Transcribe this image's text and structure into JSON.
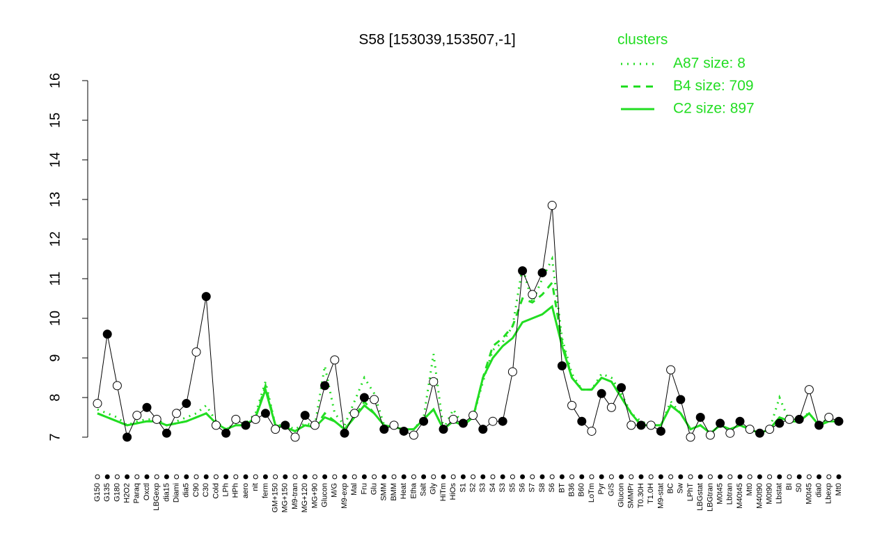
{
  "chart_data": {
    "type": "line",
    "title": "S58 [153039,153507,-1]",
    "legend_title": "clusters",
    "categories": [
      "G150",
      "G135",
      "G180",
      "H2O2",
      "Paraq",
      "Oxctl",
      "LBGexp",
      "dia15",
      "Diami",
      "dia5",
      "C90",
      "C30",
      "Cold",
      "LPh",
      "HPh",
      "aero",
      "nit",
      "ferm",
      "GM+150",
      "MG+150",
      "M9-tran",
      "MG+120",
      "MG+90",
      "Glucon",
      "M/G",
      "M9-exp",
      "Mal",
      "Fru",
      "Glu",
      "SMM",
      "BMM",
      "Heat",
      "Etha",
      "Salt",
      "Gly",
      "HiTm",
      "HiOs",
      "S1",
      "S2",
      "S3",
      "S4",
      "S3",
      "S5",
      "S6",
      "S7",
      "S8",
      "S6",
      "BT",
      "B36",
      "B60",
      "LoTm",
      "Pyr",
      "G/S",
      "Glucon",
      "SMMPr",
      "T0.30H",
      "T1.0H",
      "M9-stat",
      "BC",
      "Sw",
      "LPhT",
      "LBGstat",
      "LBGtran",
      "M0t45",
      "Lbtran",
      "M40t45",
      "Mt0",
      "M40t90",
      "M0t90",
      "Lbstat",
      "BI",
      "S0",
      "M0t45",
      "dia0",
      "Lbexp",
      "Mt0"
    ],
    "values": [
      7.85,
      9.6,
      8.3,
      7.0,
      7.55,
      7.75,
      7.45,
      7.1,
      7.6,
      7.85,
      9.15,
      10.55,
      7.3,
      7.1,
      7.45,
      7.3,
      7.45,
      7.6,
      7.2,
      7.3,
      7.0,
      7.55,
      7.3,
      8.3,
      8.95,
      7.1,
      7.6,
      8.0,
      7.95,
      7.2,
      7.3,
      7.15,
      7.05,
      7.4,
      8.4,
      7.2,
      7.45,
      7.35,
      7.55,
      7.2,
      7.4,
      7.4,
      8.65,
      11.2,
      10.6,
      11.15,
      12.85,
      8.8,
      7.8,
      7.4,
      7.15,
      8.1,
      7.75,
      8.25,
      7.3,
      7.3,
      7.3,
      7.15,
      8.7,
      7.95,
      7.0,
      7.5,
      7.05,
      7.35,
      7.1,
      7.4,
      7.2,
      7.1,
      7.2,
      7.35,
      7.45,
      7.45,
      8.2,
      7.3,
      7.5,
      7.4
    ],
    "series": [
      {
        "name": "A87 size: 8",
        "color": "#22dd22",
        "style": "dotted",
        "values": [
          7.7,
          7.6,
          7.5,
          7.3,
          7.4,
          7.45,
          7.45,
          7.3,
          7.4,
          7.5,
          7.6,
          7.8,
          7.4,
          7.2,
          7.35,
          7.35,
          7.6,
          8.4,
          7.3,
          7.3,
          7.2,
          7.35,
          7.3,
          8.8,
          7.6,
          7.3,
          7.9,
          8.5,
          8.1,
          7.3,
          7.25,
          7.2,
          7.2,
          7.5,
          9.1,
          7.2,
          7.7,
          7.3,
          7.5,
          8.4,
          9.2,
          9.4,
          9.8,
          11.3,
          10.4,
          11.0,
          11.5,
          9.5,
          8.6,
          8.2,
          8.2,
          8.6,
          8.5,
          8.1,
          7.6,
          7.4,
          7.3,
          7.3,
          7.9,
          7.6,
          7.2,
          7.3,
          7.1,
          7.3,
          7.2,
          7.3,
          7.2,
          7.1,
          7.2,
          8.0,
          7.4,
          7.5,
          7.6,
          7.3,
          7.5,
          7.4
        ]
      },
      {
        "name": "B4 size: 709",
        "color": "#22dd22",
        "style": "dashed",
        "values": [
          7.6,
          7.5,
          7.4,
          7.3,
          7.35,
          7.4,
          7.4,
          7.3,
          7.35,
          7.4,
          7.5,
          7.6,
          7.35,
          7.2,
          7.3,
          7.3,
          7.5,
          8.3,
          7.3,
          7.25,
          7.15,
          7.3,
          7.25,
          7.6,
          7.4,
          7.2,
          7.5,
          7.9,
          7.6,
          7.3,
          7.25,
          7.2,
          7.2,
          7.45,
          7.7,
          7.2,
          7.4,
          7.3,
          7.5,
          8.5,
          9.3,
          9.5,
          9.8,
          10.5,
          10.4,
          10.6,
          10.9,
          9.4,
          8.5,
          8.2,
          8.2,
          8.5,
          8.4,
          8.0,
          7.6,
          7.3,
          7.3,
          7.3,
          7.8,
          7.6,
          7.2,
          7.3,
          7.1,
          7.3,
          7.2,
          7.3,
          7.2,
          7.1,
          7.2,
          7.5,
          7.4,
          7.4,
          7.6,
          7.3,
          7.4,
          7.4
        ]
      },
      {
        "name": "C2 size: 897",
        "color": "#22dd22",
        "style": "solid",
        "values": [
          7.6,
          7.5,
          7.4,
          7.3,
          7.35,
          7.4,
          7.4,
          7.3,
          7.35,
          7.4,
          7.5,
          7.6,
          7.35,
          7.2,
          7.3,
          7.3,
          7.5,
          8.2,
          7.3,
          7.25,
          7.15,
          7.3,
          7.25,
          7.5,
          7.4,
          7.2,
          7.5,
          7.8,
          7.6,
          7.3,
          7.25,
          7.2,
          7.2,
          7.45,
          7.7,
          7.2,
          7.4,
          7.3,
          7.5,
          8.5,
          9.0,
          9.3,
          9.5,
          9.9,
          10.0,
          10.1,
          10.3,
          9.3,
          8.5,
          8.2,
          8.2,
          8.5,
          8.4,
          8.0,
          7.6,
          7.3,
          7.3,
          7.3,
          7.8,
          7.6,
          7.2,
          7.3,
          7.1,
          7.3,
          7.2,
          7.3,
          7.2,
          7.1,
          7.2,
          7.5,
          7.4,
          7.4,
          7.6,
          7.3,
          7.4,
          7.4
        ]
      }
    ],
    "ylim": [
      6.8,
      16.2
    ],
    "yticks": [
      7,
      8,
      9,
      10,
      11,
      12,
      13,
      14,
      15,
      16
    ]
  }
}
